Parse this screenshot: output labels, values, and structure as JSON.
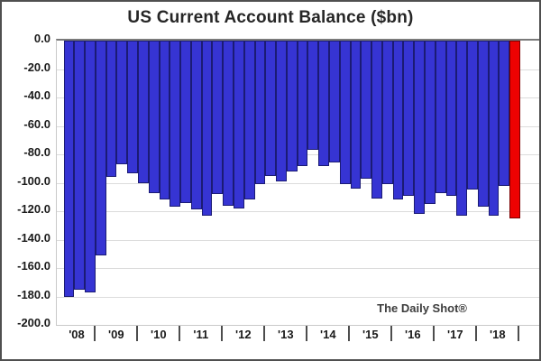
{
  "chart_data": {
    "type": "bar",
    "title": "US Current Account Balance ($bn)",
    "source": "The Daily Shot®",
    "xlabel": "",
    "ylabel": "",
    "ylim": [
      -200,
      0
    ],
    "grid": "horizontal-light-gray",
    "legend": "none",
    "highlight_note": "latest bar (2018 Q3) highlighted in red",
    "y_tick_labels": [
      "0.0",
      "-20.0",
      "-40.0",
      "-60.0",
      "-80.0",
      "-100.0",
      "-120.0",
      "-140.0",
      "-160.0",
      "-180.0",
      "-200.0"
    ],
    "x_year_labels": [
      "'08",
      "'09",
      "'10",
      "'11",
      "'12",
      "'13",
      "'14",
      "'15",
      "'16",
      "'17",
      "'18"
    ],
    "series": [
      {
        "period": "2008 Q1",
        "value": -180,
        "color": "blue"
      },
      {
        "period": "2008 Q2",
        "value": -175,
        "color": "blue"
      },
      {
        "period": "2008 Q3",
        "value": -177,
        "color": "blue"
      },
      {
        "period": "2008 Q4",
        "value": -151,
        "color": "blue"
      },
      {
        "period": "2009 Q1",
        "value": -96,
        "color": "blue"
      },
      {
        "period": "2009 Q2",
        "value": -87,
        "color": "blue"
      },
      {
        "period": "2009 Q3",
        "value": -93,
        "color": "blue"
      },
      {
        "period": "2009 Q4",
        "value": -100,
        "color": "blue"
      },
      {
        "period": "2010 Q1",
        "value": -107,
        "color": "blue"
      },
      {
        "period": "2010 Q2",
        "value": -112,
        "color": "blue"
      },
      {
        "period": "2010 Q3",
        "value": -117,
        "color": "blue"
      },
      {
        "period": "2010 Q4",
        "value": -114,
        "color": "blue"
      },
      {
        "period": "2011 Q1",
        "value": -119,
        "color": "blue"
      },
      {
        "period": "2011 Q2",
        "value": -123,
        "color": "blue"
      },
      {
        "period": "2011 Q3",
        "value": -108,
        "color": "blue"
      },
      {
        "period": "2011 Q4",
        "value": -116,
        "color": "blue"
      },
      {
        "period": "2012 Q1",
        "value": -118,
        "color": "blue"
      },
      {
        "period": "2012 Q2",
        "value": -112,
        "color": "blue"
      },
      {
        "period": "2012 Q3",
        "value": -101,
        "color": "blue"
      },
      {
        "period": "2012 Q4",
        "value": -95,
        "color": "blue"
      },
      {
        "period": "2013 Q1",
        "value": -99,
        "color": "blue"
      },
      {
        "period": "2013 Q2",
        "value": -92,
        "color": "blue"
      },
      {
        "period": "2013 Q3",
        "value": -88,
        "color": "blue"
      },
      {
        "period": "2013 Q4",
        "value": -77,
        "color": "blue"
      },
      {
        "period": "2014 Q1",
        "value": -88,
        "color": "blue"
      },
      {
        "period": "2014 Q2",
        "value": -86,
        "color": "blue"
      },
      {
        "period": "2014 Q3",
        "value": -101,
        "color": "blue"
      },
      {
        "period": "2014 Q4",
        "value": -104,
        "color": "blue"
      },
      {
        "period": "2015 Q1",
        "value": -97,
        "color": "blue"
      },
      {
        "period": "2015 Q2",
        "value": -111,
        "color": "blue"
      },
      {
        "period": "2015 Q3",
        "value": -101,
        "color": "blue"
      },
      {
        "period": "2015 Q4",
        "value": -112,
        "color": "blue"
      },
      {
        "period": "2016 Q1",
        "value": -109,
        "color": "blue"
      },
      {
        "period": "2016 Q2",
        "value": -122,
        "color": "blue"
      },
      {
        "period": "2016 Q3",
        "value": -115,
        "color": "blue"
      },
      {
        "period": "2016 Q4",
        "value": -107,
        "color": "blue"
      },
      {
        "period": "2017 Q1",
        "value": -109,
        "color": "blue"
      },
      {
        "period": "2017 Q2",
        "value": -123,
        "color": "blue"
      },
      {
        "period": "2017 Q3",
        "value": -105,
        "color": "blue"
      },
      {
        "period": "2017 Q4",
        "value": -117,
        "color": "blue"
      },
      {
        "period": "2018 Q1",
        "value": -123,
        "color": "blue"
      },
      {
        "period": "2018 Q2",
        "value": -102,
        "color": "blue"
      },
      {
        "period": "2018 Q3",
        "value": -125,
        "color": "red"
      }
    ],
    "colors": {
      "bar_fill": "#3634d3",
      "bar_border": "#1b1b74",
      "highlight_fill": "#ee0202",
      "highlight_border": "#7a0000",
      "gridline": "#dcdcdc",
      "zero_line": "#7a7a7a",
      "text": "#262626"
    }
  }
}
